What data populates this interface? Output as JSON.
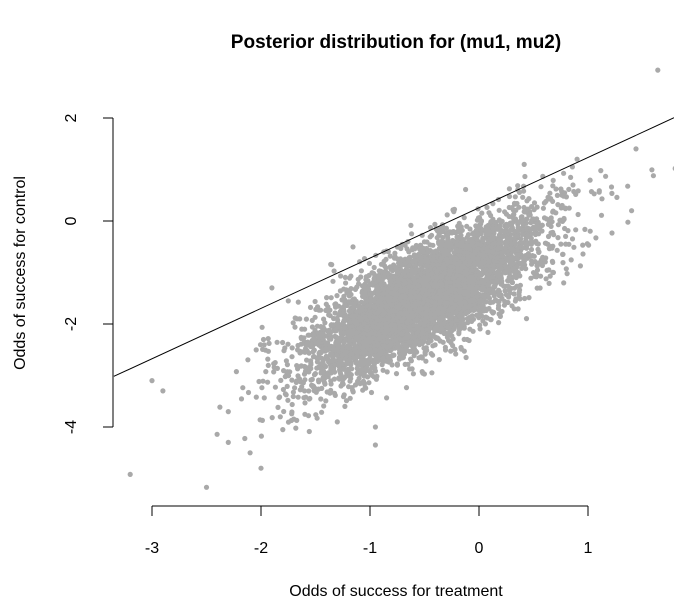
{
  "chart_data": {
    "type": "scatter",
    "title": "Posterior distribution for (mu1, mu2)",
    "xlabel": "Odds of success for treatment",
    "ylabel": "Odds of success for control",
    "xlim": [
      -3.2,
      1.8
    ],
    "ylim": [
      -5.4,
      3.0
    ],
    "x_ticks": [
      -3,
      -2,
      -1,
      0,
      1
    ],
    "x_tick_labels": [
      "-3",
      "-2",
      "-1",
      "0",
      "1"
    ],
    "y_ticks": [
      -4,
      -2,
      0,
      2
    ],
    "y_tick_labels": [
      "-4",
      "-2",
      "0",
      "2"
    ],
    "grid": false,
    "legend": "none",
    "point_color": "#A9A9A9",
    "point_count_approx": 5000,
    "cloud_summary": {
      "x_mean": -0.5,
      "x_sd": 0.55,
      "y_mean": -1.5,
      "y_sd": 0.8,
      "correlation": 0.78
    },
    "outlier_points": [
      {
        "x": 1.64,
        "y": 2.93
      },
      {
        "x": -3.2,
        "y": -4.92
      },
      {
        "x": -2.5,
        "y": -5.17
      },
      {
        "x": 1.8,
        "y": 1.02
      },
      {
        "x": 1.44,
        "y": 1.4
      },
      {
        "x": 1.6,
        "y": 0.88
      },
      {
        "x": 1.4,
        "y": 0.2
      },
      {
        "x": -2.9,
        "y": -3.3
      },
      {
        "x": -3.0,
        "y": -3.1
      },
      {
        "x": -2.3,
        "y": -4.3
      },
      {
        "x": -2.0,
        "y": -4.8
      },
      {
        "x": -1.8,
        "y": -4.05
      },
      {
        "x": -0.95,
        "y": -4.35
      },
      {
        "x": -0.95,
        "y": -4.0
      },
      {
        "x": -2.1,
        "y": -4.5
      },
      {
        "x": -2.3,
        "y": -3.7
      },
      {
        "x": -1.3,
        "y": -3.9
      },
      {
        "x": 0.9,
        "y": 1.2
      },
      {
        "x": 0.6,
        "y": 0.35
      },
      {
        "x": -1.9,
        "y": -1.3
      }
    ],
    "reference_line": {
      "type": "abline",
      "intercept": 0.25,
      "slope": 0.975
    }
  }
}
